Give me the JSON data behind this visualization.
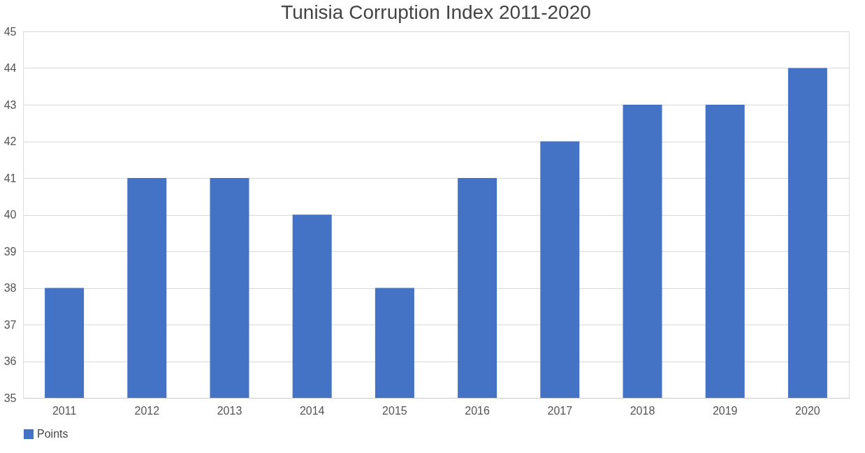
{
  "chart_data": {
    "type": "bar",
    "title": "Tunisia Corruption Index 2011-2020",
    "categories": [
      "2011",
      "2012",
      "2013",
      "2014",
      "2015",
      "2016",
      "2017",
      "2018",
      "2019",
      "2020"
    ],
    "series": [
      {
        "name": "Points",
        "color": "#4472c4",
        "values": [
          38,
          41,
          41,
          40,
          38,
          41,
          42,
          43,
          43,
          44
        ]
      }
    ],
    "ylim": [
      35,
      45
    ],
    "yticks": [
      35,
      36,
      37,
      38,
      39,
      40,
      41,
      42,
      43,
      44,
      45
    ],
    "grid": "y",
    "legend": "bottom"
  }
}
